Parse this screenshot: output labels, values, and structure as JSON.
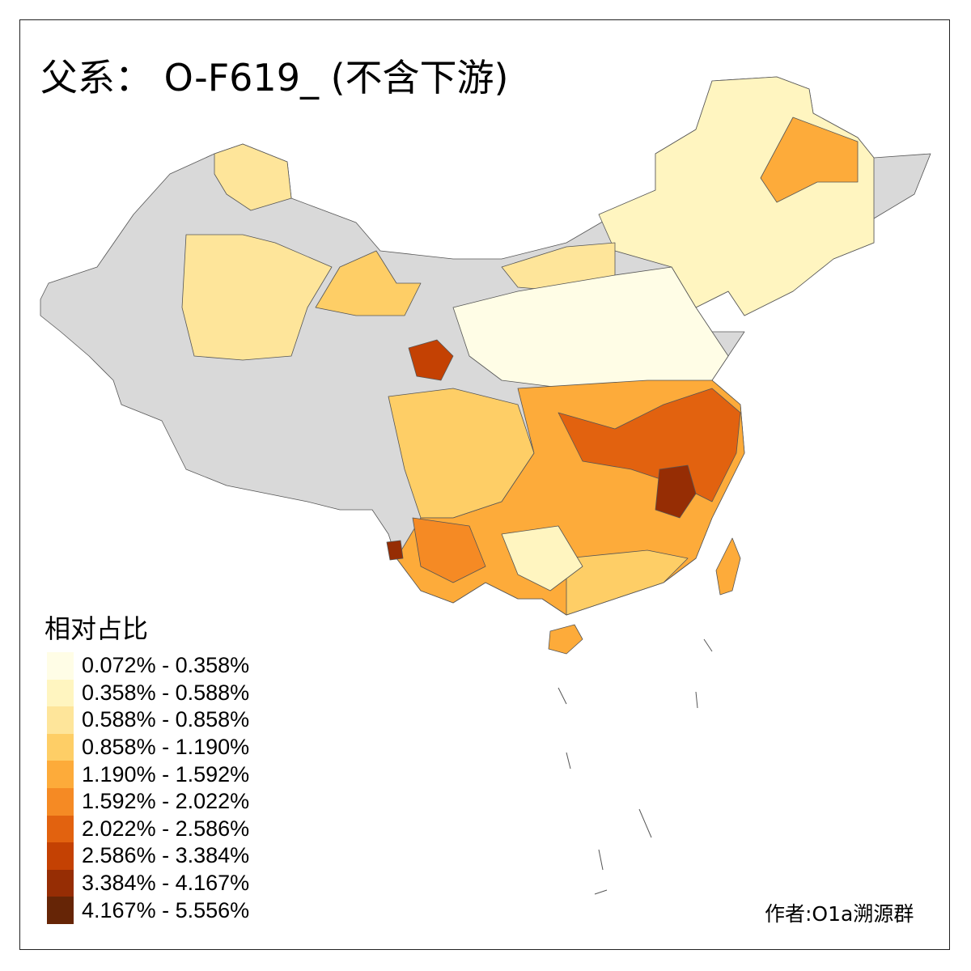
{
  "title": "父系： O-F619_ (不含下游)",
  "legend": {
    "title": "相对占比",
    "items": [
      {
        "label": "0.072% - 0.358%",
        "color": "#fffde6"
      },
      {
        "label": "0.358% - 0.588%",
        "color": "#fff5c0"
      },
      {
        "label": "0.588% - 0.858%",
        "color": "#fee59a"
      },
      {
        "label": "0.858% - 1.190%",
        "color": "#fece66"
      },
      {
        "label": "1.190% - 1.592%",
        "color": "#fdab3a"
      },
      {
        "label": "1.592% - 2.022%",
        "color": "#f58a24"
      },
      {
        "label": "2.022% - 2.586%",
        "color": "#e2620f"
      },
      {
        "label": "2.586% - 3.384%",
        "color": "#c44103"
      },
      {
        "label": "3.384% - 4.167%",
        "color": "#962d04"
      },
      {
        "label": "4.167% - 5.556%",
        "color": "#662506"
      }
    ]
  },
  "no_data_color": "#d9d9d9",
  "credit": "作者:O1a溯源群"
}
